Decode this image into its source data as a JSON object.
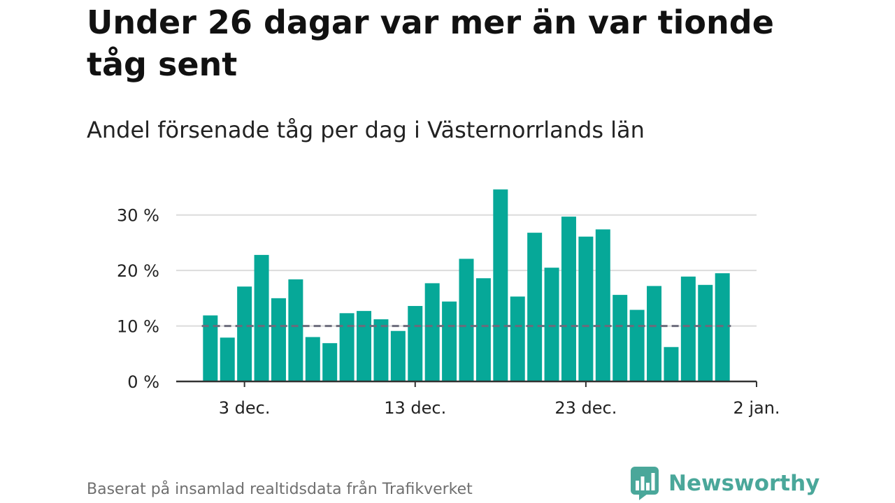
{
  "header": {
    "title": "Under 26 dagar var mer än var tionde tåg sent",
    "subtitle": "Andel försenade tåg per dag i Västernorrlands län"
  },
  "footer": {
    "source": "Baserat på insamlad realtidsdata från Trafikverket",
    "brand": "Newsworthy",
    "brand_icon": "bar-chart-speech-bubble-icon"
  },
  "colors": {
    "bar": "#06a898",
    "grid": "#dcdcdc",
    "axis": "#333333",
    "threshold": "#6b6b7b",
    "brand": "#4aa79a"
  },
  "chart_data": {
    "type": "bar",
    "x": [
      "2023-12-01",
      "2023-12-02",
      "2023-12-03",
      "2023-12-04",
      "2023-12-05",
      "2023-12-06",
      "2023-12-07",
      "2023-12-08",
      "2023-12-09",
      "2023-12-10",
      "2023-12-11",
      "2023-12-12",
      "2023-12-13",
      "2023-12-14",
      "2023-12-15",
      "2023-12-16",
      "2023-12-17",
      "2023-12-18",
      "2023-12-19",
      "2023-12-20",
      "2023-12-21",
      "2023-12-22",
      "2023-12-23",
      "2023-12-24",
      "2023-12-25",
      "2023-12-26",
      "2023-12-27",
      "2023-12-28",
      "2023-12-29",
      "2023-12-30",
      "2023-12-31",
      "2024-01-01"
    ],
    "values": [
      11.9,
      7.9,
      17.1,
      22.8,
      15.0,
      18.4,
      8.0,
      6.9,
      12.3,
      12.7,
      11.2,
      9.1,
      13.6,
      17.7,
      14.4,
      22.1,
      18.6,
      34.6,
      15.3,
      26.8,
      20.5,
      29.7,
      26.1,
      27.4,
      15.6,
      12.9,
      17.2,
      6.2,
      18.9,
      17.4,
      19.5,
      null
    ],
    "ylim": [
      0,
      35
    ],
    "yticks": [
      0,
      10,
      20,
      30
    ],
    "ytick_labels": [
      "0 %",
      "10 %",
      "20 %",
      "30 %"
    ],
    "xticks": [
      "2023-12-03",
      "2023-12-13",
      "2023-12-23",
      "2024-01-02"
    ],
    "xtick_labels": [
      "3 dec.",
      "13 dec.",
      "23 dec.",
      "2 jan."
    ],
    "xlim": [
      "2023-11-29",
      "2024-01-02"
    ],
    "reference_line": 10,
    "grid": true,
    "legend": "none"
  }
}
